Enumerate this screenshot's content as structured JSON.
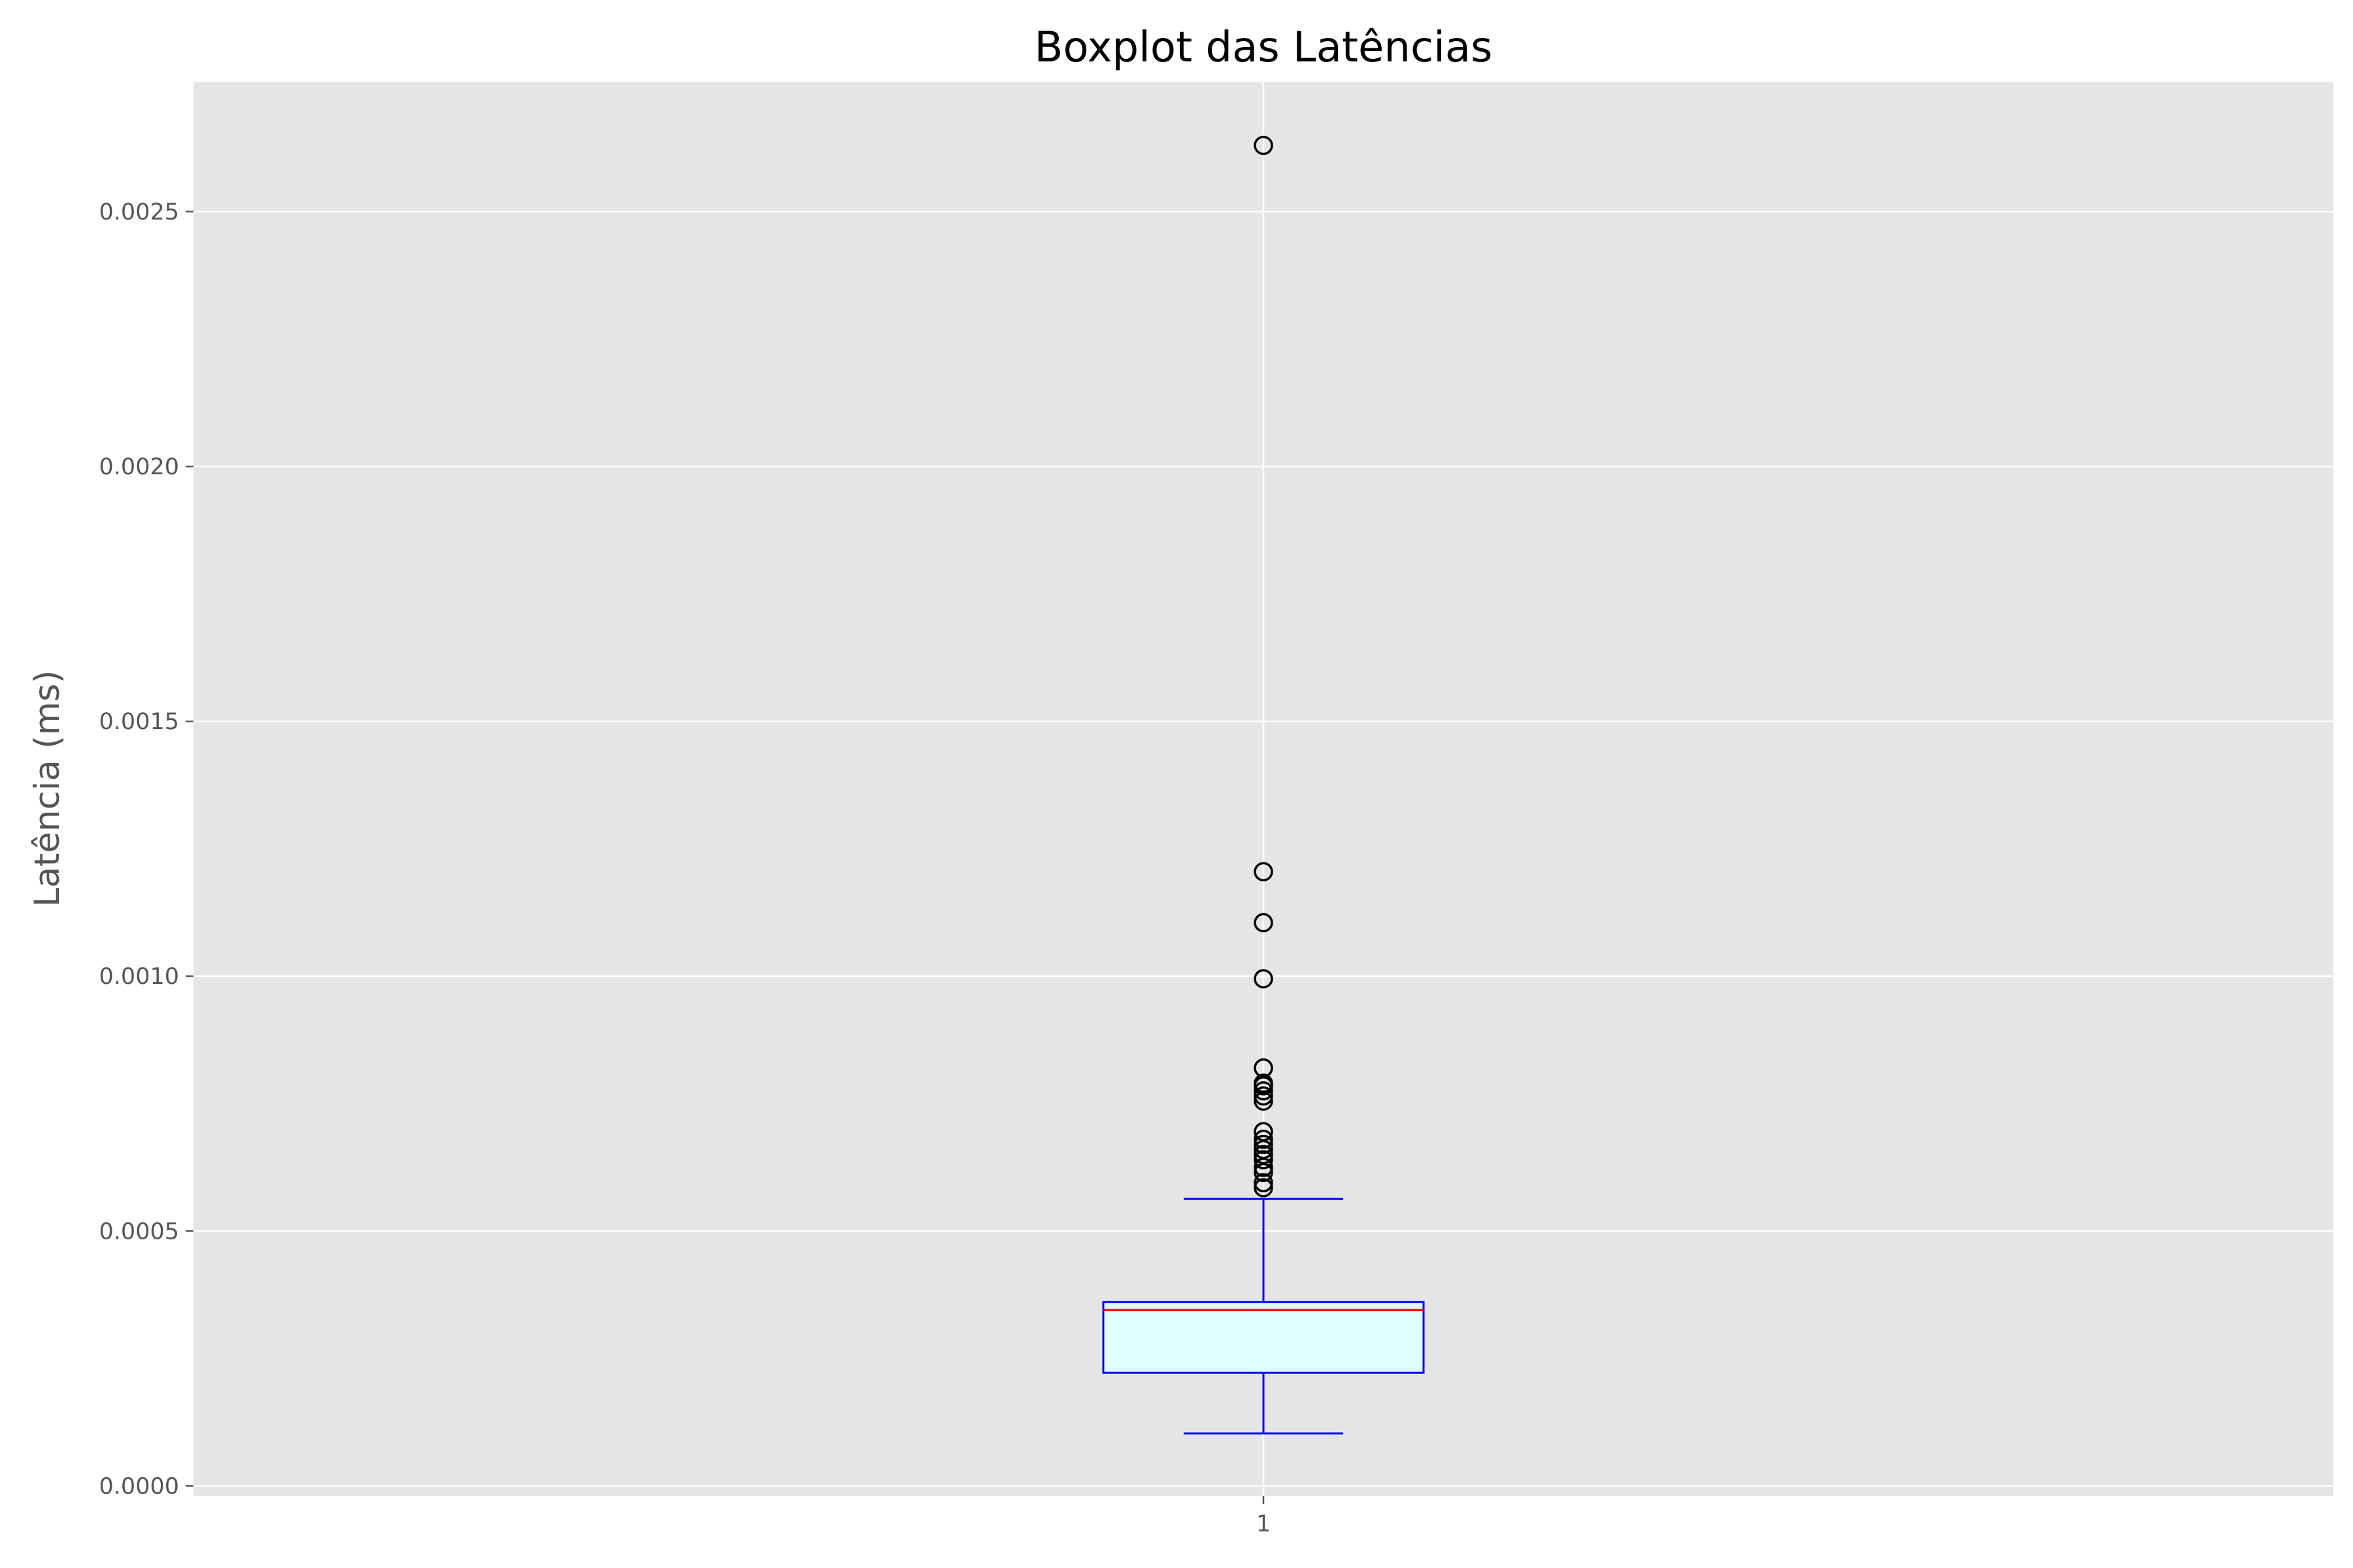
{
  "chart_data": {
    "type": "boxplot",
    "title": "Boxplot das Latências",
    "xlabel": "",
    "ylabel": "Latência (ms)",
    "categories": [
      "1"
    ],
    "ylim": [
      -2e-05,
      0.002755
    ],
    "yticks": [
      0.0,
      0.0005,
      0.001,
      0.0015,
      0.002,
      0.0025
    ],
    "ytick_labels": [
      "0.0000",
      "0.0005",
      "0.0010",
      "0.0015",
      "0.0020",
      "0.0025"
    ],
    "grid": true,
    "box": {
      "whisker_low": 0.000103,
      "q1": 0.000222,
      "median": 0.000345,
      "q3": 0.000361,
      "whisker_high": 0.000563,
      "outliers": [
        0.00263,
        0.001205,
        0.001105,
        0.000995,
        0.00082,
        0.00079,
        0.000785,
        0.000775,
        0.000765,
        0.000755,
        0.000695,
        0.00068,
        0.00067,
        0.00066,
        0.00065,
        0.00064,
        0.000625,
        0.000615,
        0.000595,
        0.000585
      ]
    },
    "colors": {
      "background": "#e5e5e5",
      "grid": "#ffffff",
      "box_edge": "#0000ff",
      "box_fill": "#e0ffff",
      "median": "#ff0000",
      "whisker": "#0000ff",
      "outlier_edge": "#000000"
    }
  }
}
